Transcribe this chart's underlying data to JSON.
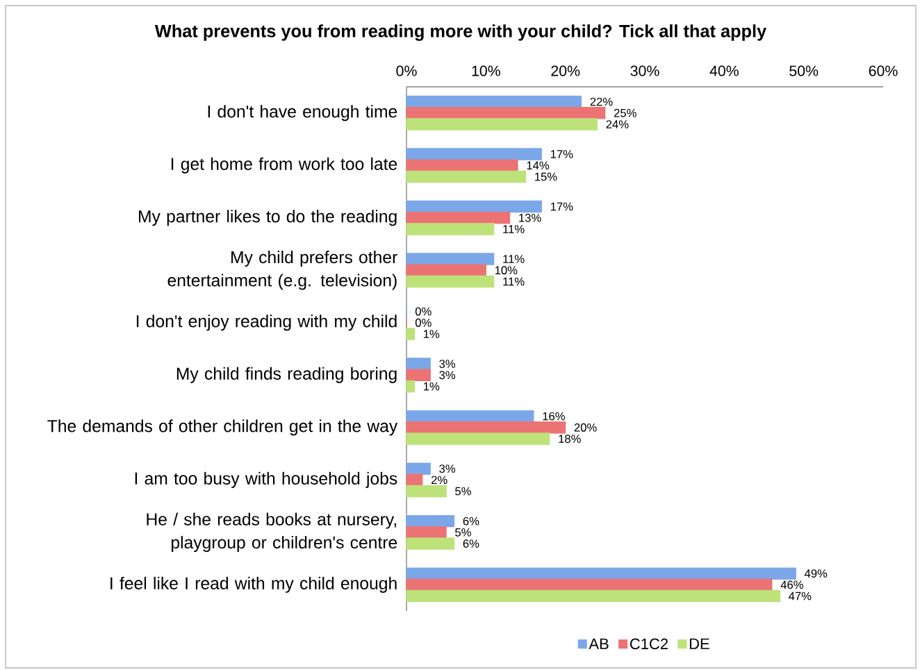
{
  "chart_data": {
    "type": "bar",
    "orientation": "horizontal",
    "title": "What prevents you from reading more with your child?  Tick all that apply",
    "categories": [
      "I don't have enough time",
      "I get home from work too late",
      "My partner likes to do the reading",
      "My child prefers other entertainment (e.g. television)",
      "I don't enjoy reading with my child",
      "My child finds reading boring",
      "The demands of other children get in the way",
      "I am too busy with household jobs",
      "He / she reads books at nursery, playgroup or children's centre",
      "I feel like I read with my child enough"
    ],
    "series": [
      {
        "name": "AB",
        "color": "#7ba7e8",
        "values": [
          22,
          17,
          17,
          11,
          0,
          3,
          16,
          3,
          6,
          49
        ],
        "value_labels": [
          "22%",
          "17%",
          "17%",
          "11%",
          "0%",
          "3%",
          "16%",
          "3%",
          "6%",
          "49%"
        ]
      },
      {
        "name": "C1C2",
        "color": "#ec7373",
        "values": [
          25,
          14,
          13,
          10,
          0,
          3,
          20,
          2,
          5,
          46
        ],
        "value_labels": [
          "25%",
          "14%",
          "13%",
          "10%",
          "0%",
          "3%",
          "20%",
          "2%",
          "5%",
          "46%"
        ]
      },
      {
        "name": "DE",
        "color": "#bde27a",
        "values": [
          24,
          15,
          11,
          11,
          1,
          1,
          18,
          5,
          6,
          47
        ],
        "value_labels": [
          "24%",
          "15%",
          "11%",
          "11%",
          "1%",
          "1%",
          "18%",
          "5%",
          "6%",
          "47%"
        ]
      }
    ],
    "xlim": [
      0,
      60
    ],
    "xticks": [
      {
        "value": 0,
        "label": "0%"
      },
      {
        "value": 10,
        "label": "10%"
      },
      {
        "value": 20,
        "label": "20%"
      },
      {
        "value": 30,
        "label": "30%"
      },
      {
        "value": 40,
        "label": "40%"
      },
      {
        "value": 50,
        "label": "50%"
      },
      {
        "value": 60,
        "label": "60%"
      }
    ],
    "legend": "bottom",
    "grid": false
  }
}
